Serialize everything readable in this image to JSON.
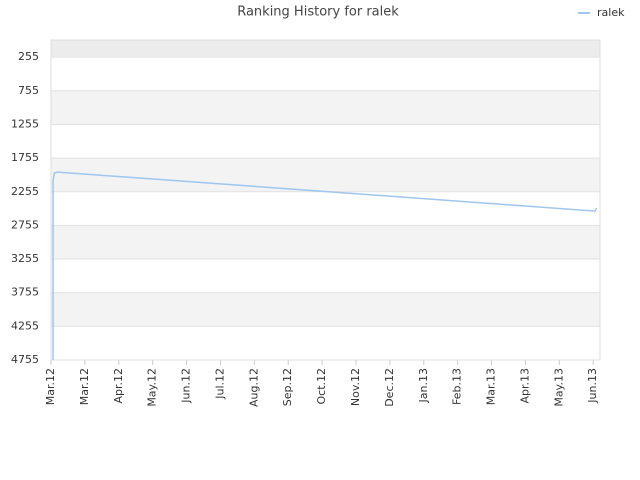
{
  "chart_data": {
    "type": "line",
    "title": "Ranking History for ralek",
    "series": [
      {
        "name": "ralek",
        "color": "#9ec6ee",
        "x": [
          0.06,
          0.06,
          0.1,
          0.2,
          16.05,
          16.1
        ],
        "values": [
          4755,
          2100,
          1975,
          1963,
          2542,
          2497
        ]
      }
    ],
    "xlim": [
      0,
      16.2
    ],
    "xticks": [
      {
        "value": 0,
        "label": "Mar.12"
      },
      {
        "value": 1,
        "label": "Mar.12"
      },
      {
        "value": 2,
        "label": "Apr.12"
      },
      {
        "value": 3,
        "label": "May.12"
      },
      {
        "value": 4,
        "label": "Jun.12"
      },
      {
        "value": 5,
        "label": "Jul.12"
      },
      {
        "value": 6,
        "label": "Aug.12"
      },
      {
        "value": 7,
        "label": "Sep.12"
      },
      {
        "value": 8,
        "label": "Oct.12"
      },
      {
        "value": 9,
        "label": "Nov.12"
      },
      {
        "value": 10,
        "label": "Dec.12"
      },
      {
        "value": 11,
        "label": "Jan.13"
      },
      {
        "value": 12,
        "label": "Feb.13"
      },
      {
        "value": 13,
        "label": "Mar.13"
      },
      {
        "value": 14,
        "label": "Apr.13"
      },
      {
        "value": 15,
        "label": "May.13"
      },
      {
        "value": 16,
        "label": "Jun.13"
      }
    ],
    "ylim": [
      4755,
      0
    ],
    "yticks": [
      255,
      755,
      1255,
      1755,
      2255,
      2755,
      3255,
      3755,
      4255,
      4755
    ],
    "grid": true,
    "legend": "top-right"
  }
}
